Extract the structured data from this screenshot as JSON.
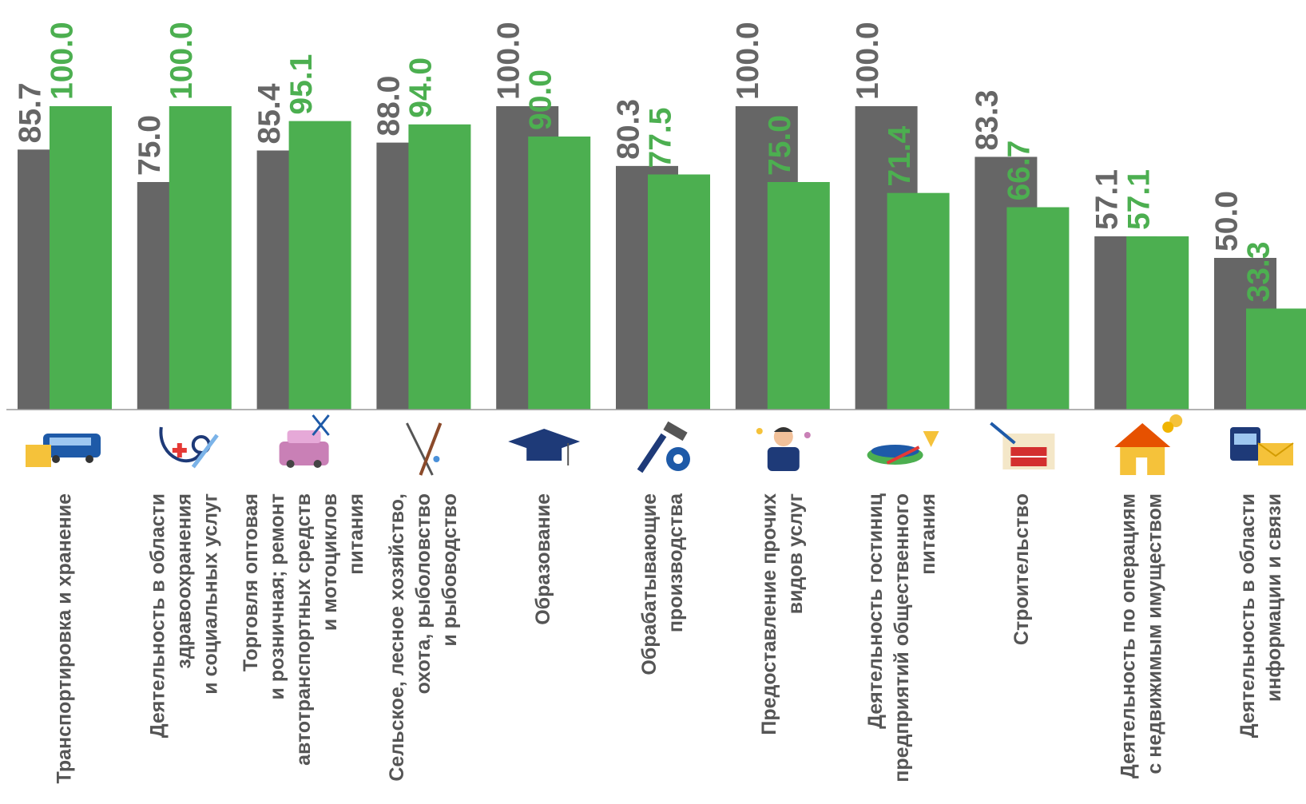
{
  "chart_data": {
    "type": "bar",
    "categories": [
      [
        "Транспортировка и хранение"
      ],
      [
        "Деятельность в области",
        "здравоохранения",
        "и социальных услуг"
      ],
      [
        "Торговля оптовая",
        "и розничная; ремонт",
        "автотранспортных средств",
        "и мотоциклов",
        "питания"
      ],
      [
        "Сельское, лесное хозяйство,",
        "охота, рыболовство",
        "и рыбоводство"
      ],
      [
        "Образование"
      ],
      [
        "Обрабатывающие",
        "производства"
      ],
      [
        "Предоставление прочих",
        "видов услуг"
      ],
      [
        "Деятельность гостиниц",
        "предприятий общественного",
        "питания"
      ],
      [
        "Строительство"
      ],
      [
        "Деятельность по операциям",
        "с недвижимым имуществом"
      ],
      [
        "Деятельность в области",
        "информации и связи"
      ]
    ],
    "icons": [
      "bus-and-box-icon",
      "stethoscope-and-syringe-icon",
      "car-and-scissors-icon",
      "fishing-rod-and-rifle-icon",
      "graduation-cap-icon",
      "hammer-and-gear-icon",
      "service-worker-icon",
      "food-serving-icon",
      "brick-wall-and-trowel-icon",
      "house-and-coins-icon",
      "telephone-and-envelope-icon"
    ],
    "series": [
      {
        "color": "#666666",
        "values": [
          85.7,
          75.0,
          85.4,
          88.0,
          100.0,
          80.3,
          100.0,
          100.0,
          83.3,
          57.1,
          50.0
        ]
      },
      {
        "color": "#4caf50",
        "values": [
          100.0,
          100.0,
          95.1,
          94.0,
          90.0,
          77.5,
          75.0,
          71.4,
          66.7,
          57.1,
          33.3
        ]
      }
    ],
    "value_format_decimals": 1,
    "ylim": [
      0,
      100
    ],
    "grid": false,
    "legend": "none"
  }
}
